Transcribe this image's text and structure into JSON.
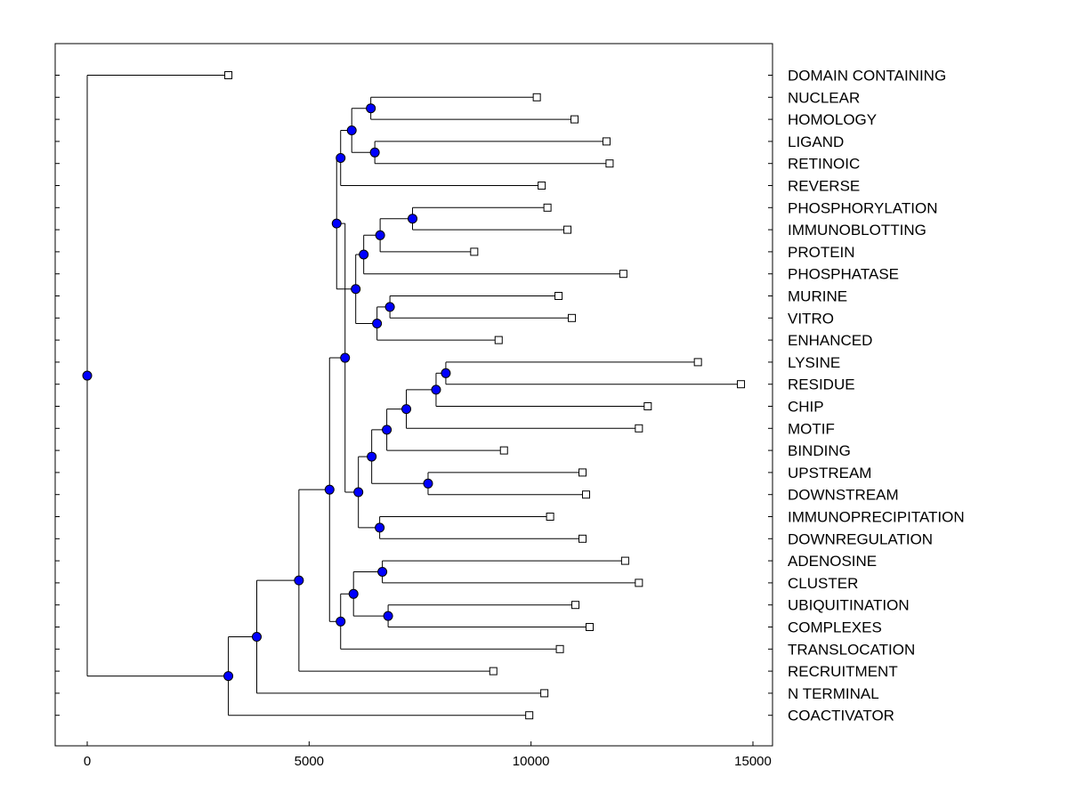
{
  "chart_data": {
    "type": "dendrogram",
    "title": "",
    "xlabel": "",
    "ylabel": "",
    "xlim": [
      -700,
      15500
    ],
    "x_ticks": [
      0,
      5000,
      10000,
      15000
    ],
    "x_tick_labels": [
      "0",
      "5000",
      "10000",
      "15000"
    ],
    "colors": {
      "node": "#0000ff",
      "line": "#000000",
      "leaf": "#ffffff"
    },
    "leaves": [
      {
        "label": "DOMAIN CONTAINING",
        "x": 3180
      },
      {
        "label": "NUCLEAR",
        "x": 10130
      },
      {
        "label": "HOMOLOGY",
        "x": 10980
      },
      {
        "label": "LIGAND",
        "x": 11700
      },
      {
        "label": "RETINOIC",
        "x": 11770
      },
      {
        "label": "REVERSE",
        "x": 10240
      },
      {
        "label": "PHOSPHORYLATION",
        "x": 10370
      },
      {
        "label": "IMMUNOBLOTTING",
        "x": 10820
      },
      {
        "label": "PROTEIN",
        "x": 8720
      },
      {
        "label": "PHOSPHATASE",
        "x": 12080
      },
      {
        "label": "MURINE",
        "x": 10620
      },
      {
        "label": "VITRO",
        "x": 10920
      },
      {
        "label": "ENHANCED",
        "x": 9270
      },
      {
        "label": "LYSINE",
        "x": 13760
      },
      {
        "label": "RESIDUE",
        "x": 14730
      },
      {
        "label": "CHIP",
        "x": 12630
      },
      {
        "label": "MOTIF",
        "x": 12430
      },
      {
        "label": "BINDING",
        "x": 9390
      },
      {
        "label": "UPSTREAM",
        "x": 11160
      },
      {
        "label": "DOWNSTREAM",
        "x": 11240
      },
      {
        "label": "IMMUNOPRECIPITATION",
        "x": 10430
      },
      {
        "label": "DOWNREGULATION",
        "x": 11160
      },
      {
        "label": "ADENOSINE",
        "x": 12120
      },
      {
        "label": "CLUSTER",
        "x": 12430
      },
      {
        "label": "UBIQUITINATION",
        "x": 11000
      },
      {
        "label": "COMPLEXES",
        "x": 11320
      },
      {
        "label": "TRANSLOCATION",
        "x": 10650
      },
      {
        "label": "RECRUITMENT",
        "x": 9150
      },
      {
        "label": "N TERMINAL",
        "x": 10300
      },
      {
        "label": "COACTIVATOR",
        "x": 9960
      }
    ],
    "merges": [
      {
        "id": "n1",
        "x": 6390,
        "children": [
          "L1",
          "L2"
        ]
      },
      {
        "id": "n2",
        "x": 6480,
        "children": [
          "L3",
          "L4"
        ]
      },
      {
        "id": "n3",
        "x": 5960,
        "children": [
          "n1",
          "n2"
        ]
      },
      {
        "id": "n4",
        "x": 5710,
        "children": [
          "n3",
          "L5"
        ]
      },
      {
        "id": "n5",
        "x": 7330,
        "children": [
          "L6",
          "L7"
        ]
      },
      {
        "id": "n6",
        "x": 6600,
        "children": [
          "n5",
          "L8"
        ]
      },
      {
        "id": "n7",
        "x": 6230,
        "children": [
          "n6",
          "L9"
        ]
      },
      {
        "id": "n8",
        "x": 6820,
        "children": [
          "L10",
          "L11"
        ]
      },
      {
        "id": "n9",
        "x": 6530,
        "children": [
          "n8",
          "L12"
        ]
      },
      {
        "id": "n10",
        "x": 6050,
        "children": [
          "n7",
          "n9"
        ]
      },
      {
        "id": "n11",
        "x": 5620,
        "children": [
          "n4",
          "n10"
        ]
      },
      {
        "id": "n12",
        "x": 8080,
        "children": [
          "L13",
          "L14"
        ]
      },
      {
        "id": "n13",
        "x": 7860,
        "children": [
          "n12",
          "L15"
        ]
      },
      {
        "id": "n14",
        "x": 7190,
        "children": [
          "n13",
          "L16"
        ]
      },
      {
        "id": "n15",
        "x": 6750,
        "children": [
          "n14",
          "L17"
        ]
      },
      {
        "id": "n16",
        "x": 7680,
        "children": [
          "L18",
          "L19"
        ]
      },
      {
        "id": "n17",
        "x": 6410,
        "children": [
          "n15",
          "n16"
        ]
      },
      {
        "id": "n18",
        "x": 6590,
        "children": [
          "L20",
          "L21"
        ]
      },
      {
        "id": "n19",
        "x": 6110,
        "children": [
          "n17",
          "n18"
        ]
      },
      {
        "id": "n20",
        "x": 5810,
        "children": [
          "n11",
          "n19"
        ]
      },
      {
        "id": "n21",
        "x": 6650,
        "children": [
          "L22",
          "L23"
        ]
      },
      {
        "id": "n22",
        "x": 6780,
        "children": [
          "L24",
          "L25"
        ]
      },
      {
        "id": "n23",
        "x": 6000,
        "children": [
          "n21",
          "n22"
        ]
      },
      {
        "id": "n24",
        "x": 5710,
        "children": [
          "n23",
          "L26"
        ]
      },
      {
        "id": "n25",
        "x": 5460,
        "children": [
          "n20",
          "n24"
        ]
      },
      {
        "id": "n26",
        "x": 4770,
        "children": [
          "n25",
          "L27"
        ]
      },
      {
        "id": "n27",
        "x": 3820,
        "children": [
          "n26",
          "L28"
        ]
      },
      {
        "id": "n28",
        "x": 3180,
        "children": [
          "n27",
          "L29"
        ]
      },
      {
        "id": "n29",
        "x": 0,
        "children": [
          "L0",
          "n28"
        ]
      }
    ]
  }
}
